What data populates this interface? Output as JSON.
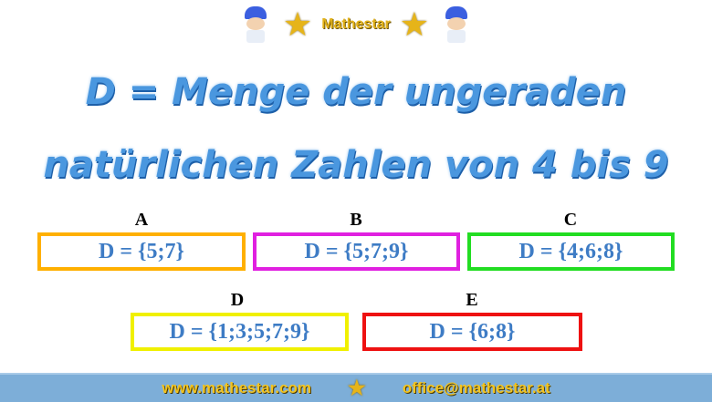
{
  "header": {
    "brand": "Mathestar"
  },
  "title": {
    "line1": "D = Menge der ungeraden",
    "line2": "natürlichen Zahlen von 4 bis 9"
  },
  "options": [
    {
      "letter": "A",
      "text": "D = {5;7}",
      "color": "#ffb000"
    },
    {
      "letter": "B",
      "text": "D = {5;7;9}",
      "color": "#e020e0"
    },
    {
      "letter": "C",
      "text": "D = {4;6;8}",
      "color": "#22dd22"
    },
    {
      "letter": "D",
      "text": "D = {1;3;5;7;9}",
      "color": "#f0f000"
    },
    {
      "letter": "E",
      "text": "D = {6;8}",
      "color": "#ee1111"
    }
  ],
  "footer": {
    "website": "www.mathestar.com",
    "email": "office@mathestar.at"
  }
}
